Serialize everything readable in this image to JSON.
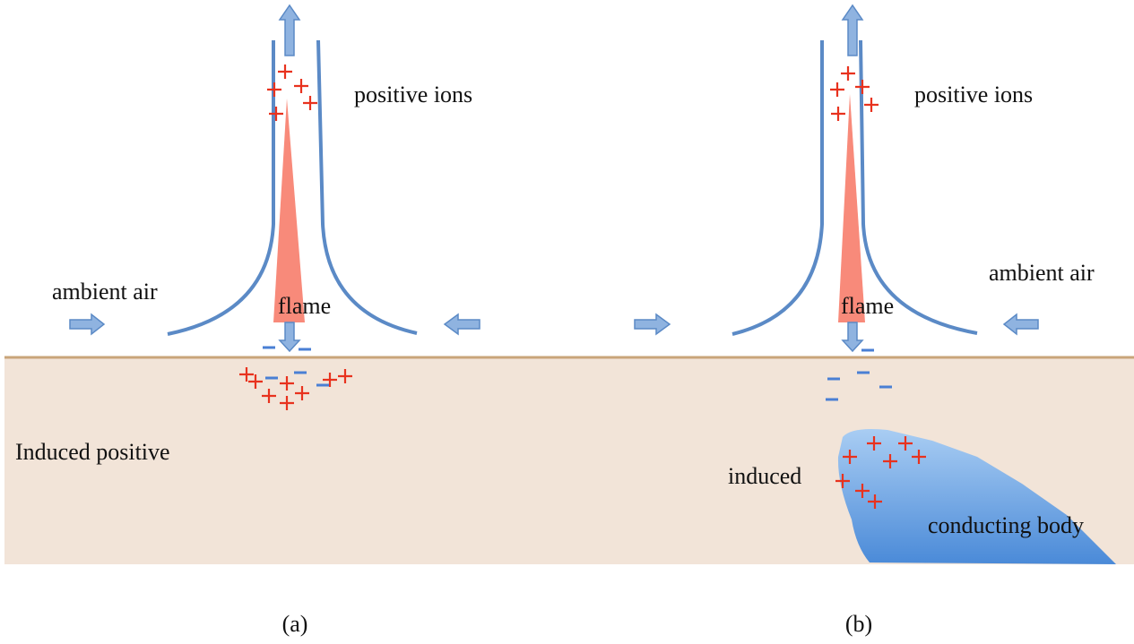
{
  "panels": [
    {
      "positive_ions": "positive ions",
      "ambient_air": "ambient air",
      "flame": "flame",
      "induced": "Induced positive",
      "caption": "(a)"
    },
    {
      "positive_ions": "positive ions",
      "ambient_air": "ambient air",
      "flame": "flame",
      "induced": "induced",
      "body": "conducting body",
      "caption": "(b)"
    }
  ]
}
